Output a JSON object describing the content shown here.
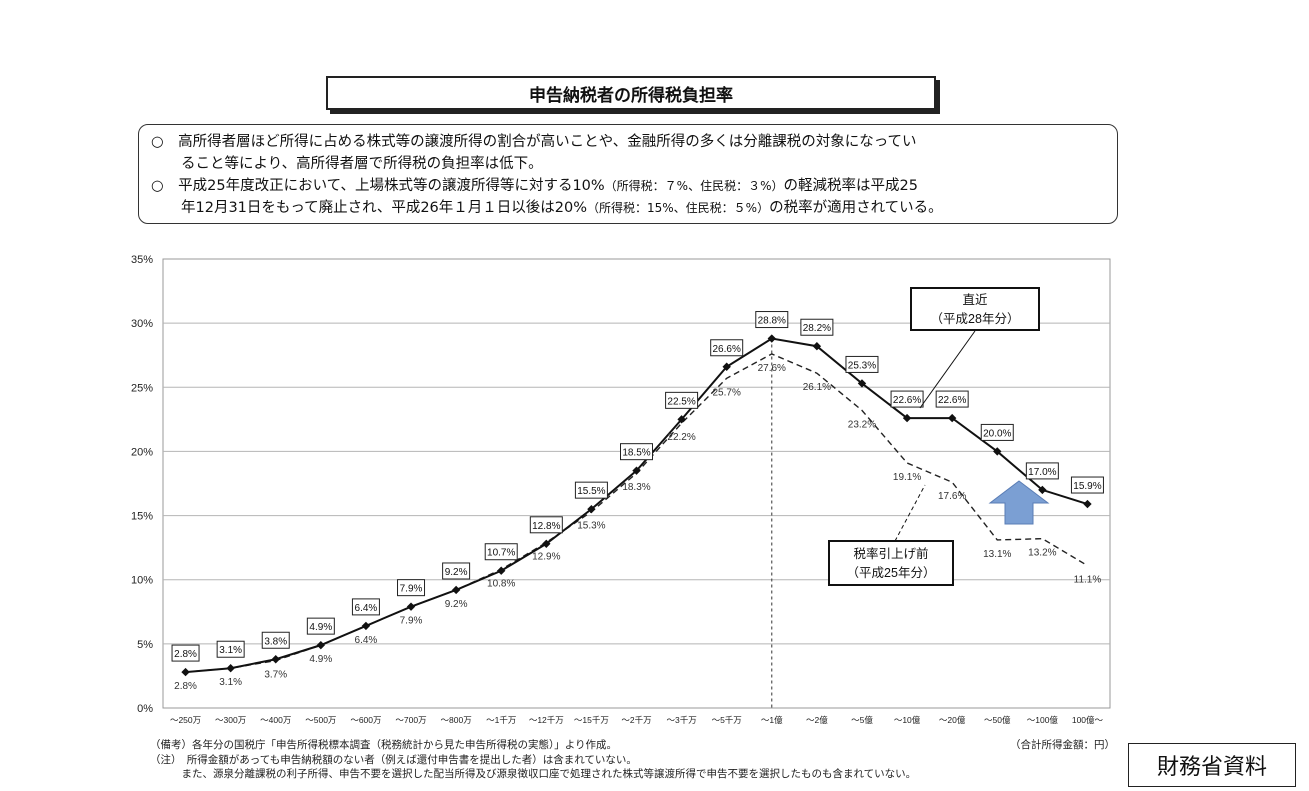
{
  "header": {
    "title": "申告納税者の所得税負担率"
  },
  "notes": {
    "line1": "○　高所得者層ほど所得に占める株式等の譲渡所得の割合が高いことや、金融所得の多くは分離課税の対象になってい",
    "line2": "ること等により、高所得者層で所得税の負担率は低下。",
    "line3a": "○　平成25年度改正において、上場株式等の譲渡所得等に対する10%",
    "line3b": "（所得税：７%、住民税：３%）",
    "line3c": "の軽減税率は平成25",
    "line4a": "年12月31日をもって廃止され、平成26年１月１日以後は20%",
    "line4b": "（所得税：15%、住民税：５%）",
    "line4c": "の税率が適用されている。"
  },
  "chart_data": {
    "type": "line",
    "categories": [
      "～250万",
      "～300万",
      "～400万",
      "～500万",
      "～600万",
      "～700万",
      "～800万",
      "～1千万",
      "～12千万",
      "～15千万",
      "～2千万",
      "～3千万",
      "～5千万",
      "～1億",
      "～2億",
      "～5億",
      "～10億",
      "～20億",
      "～50億",
      "～100億",
      "100億～"
    ],
    "series": [
      {
        "name": "直近（平成28年分）",
        "style": "solid",
        "values": [
          2.8,
          3.1,
          3.8,
          4.9,
          6.4,
          7.9,
          9.2,
          10.7,
          12.8,
          15.5,
          18.5,
          22.5,
          26.6,
          28.8,
          28.2,
          25.3,
          22.6,
          22.6,
          20.0,
          17.0,
          15.9
        ],
        "labels": [
          "2.8%",
          "3.1%",
          "3.8%",
          "4.9%",
          "6.4%",
          "7.9%",
          "9.2%",
          "10.7%",
          "12.8%",
          "15.5%",
          "18.5%",
          "22.5%",
          "26.6%",
          "28.8%",
          "28.2%",
          "25.3%",
          "22.6%",
          "22.6%",
          "20.0%",
          "17.0%",
          "15.9%"
        ]
      },
      {
        "name": "税率引上げ前（平成25年分）",
        "style": "dashed",
        "values": [
          2.8,
          3.1,
          3.7,
          4.9,
          6.4,
          7.9,
          9.2,
          10.8,
          12.9,
          15.3,
          18.3,
          22.2,
          25.7,
          27.6,
          26.1,
          23.2,
          19.1,
          17.6,
          13.1,
          13.2,
          11.1
        ],
        "labels": [
          "2.8%",
          "3.1%",
          "3.7%",
          "4.9%",
          "6.4%",
          "7.9%",
          "9.2%",
          "10.8%",
          "12.9%",
          "15.3%",
          "18.3%",
          "22.2%",
          "25.7%",
          "27.6%",
          "26.1%",
          "23.2%",
          "19.1%",
          "17.6%",
          "13.1%",
          "13.2%",
          "11.1%"
        ]
      }
    ],
    "yticks": [
      "0%",
      "5%",
      "10%",
      "15%",
      "20%",
      "25%",
      "30%",
      "35%"
    ],
    "ylim": [
      0,
      35
    ],
    "grid": true,
    "callouts": {
      "recent_line1": "直近",
      "recent_line2": "（平成28年分）",
      "before_line1": "税率引上げ前",
      "before_line2": "（平成25年分）"
    },
    "arrow_color": "#7b9fd3",
    "divider_after_category": "～1億"
  },
  "footer": {
    "line1": "（備考）各年分の国税庁「申告所得税標本調査（税務統計から見た申告所得税の実態）」より作成。",
    "line2": "（注）　所得金額があっても申告納税額のない者（例えば還付申告書を提出した者）は含まれていない。",
    "line3": "　　　また、源泉分離課税の利子所得、申告不要を選択した配当所得及び源泉徴収口座で処理された株式等譲渡所得で申告不要を選択したものも含まれていない。",
    "unit": "（合計所得金額：円）",
    "source": "財務省資料"
  }
}
